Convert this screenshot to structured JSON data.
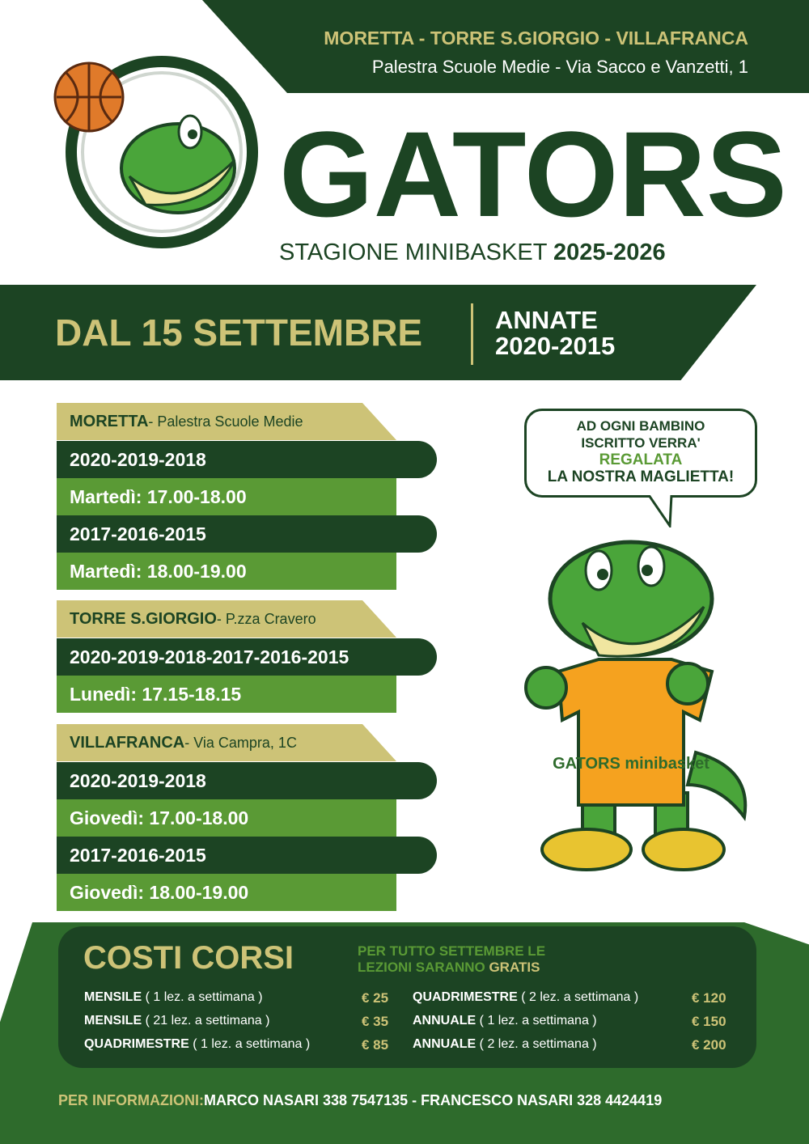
{
  "header": {
    "towns": "MORETTA - TORRE S.GIORGIO - VILLAFRANCA",
    "venue": "Palestra Scuole Medie - Via Sacco e Vanzetti, 1"
  },
  "title": "GATORS",
  "season": {
    "label": "STAGIONE MINIBASKET",
    "years": "2025-2026"
  },
  "band": {
    "start": "DAL 15 SETTEMBRE",
    "annate_label": "ANNATE",
    "annate_years": "2020-2015"
  },
  "locations": [
    {
      "name": "MORETTA",
      "place": " - Palestra Scuole Medie",
      "rows": [
        "2020-2019-2018",
        "Martedì: 17.00-18.00",
        "2017-2016-2015",
        "Martedì: 18.00-19.00"
      ]
    },
    {
      "name": "TORRE S.GIORGIO",
      "place": " - P.zza Cravero",
      "rows": [
        "2020-2019-2018-2017-2016-2015",
        "Lunedì: 17.15-18.15"
      ]
    },
    {
      "name": "VILLAFRANCA",
      "place": " - Via Campra, 1C",
      "rows": [
        "2020-2019-2018",
        "Giovedì: 17.00-18.00",
        "2017-2016-2015",
        "Giovedì: 18.00-19.00"
      ]
    }
  ],
  "bubble": {
    "l1": "AD OGNI BAMBINO",
    "l2": "ISCRITTO VERRA'",
    "l3": "REGALATA",
    "l4": "LA NOSTRA MAGLIETTA!"
  },
  "shirt": {
    "logo": "GATORS minibasket"
  },
  "costs": {
    "title": "COSTI CORSI",
    "promo1": "PER TUTTO SETTEMBRE LE",
    "promo2": "LEZIONI SARANNO ",
    "promo_gratis": "GRATIS",
    "items": [
      {
        "name": "MENSILE",
        "detail": " ( 1 lez. a settimana )",
        "price": "€ 25"
      },
      {
        "name": "MENSILE",
        "detail": " ( 21 lez. a settimana )",
        "price": "€ 35"
      },
      {
        "name": "QUADRIMESTRE",
        "detail": " ( 1 lez. a settimana )",
        "price": "€ 85"
      },
      {
        "name": "QUADRIMESTRE",
        "detail": " ( 2 lez. a settimana )",
        "price": "€ 120"
      },
      {
        "name": "ANNUALE",
        "detail": " ( 1 lez. a settimana )",
        "price": "€ 150"
      },
      {
        "name": "ANNUALE",
        "detail": " ( 2 lez. a settimana )",
        "price": "€ 200"
      }
    ]
  },
  "footer": {
    "label": "PER INFORMAZIONI:",
    "contacts": "MARCO NASARI 338 7547135 - FRANCESCO NASARI 328 4424419"
  },
  "colors": {
    "dark_green": "#1c4423",
    "green": "#5a9a35",
    "gold": "#cdc377"
  }
}
